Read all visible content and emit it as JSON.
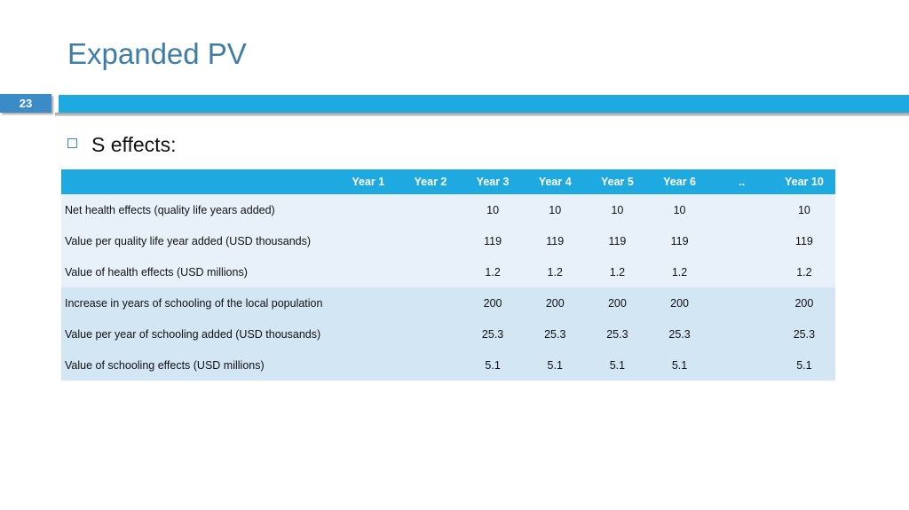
{
  "slide": {
    "title": "Expanded PV",
    "number": "23",
    "bullet": "S effects:"
  },
  "table": {
    "headers": [
      "",
      "Year 1",
      "Year 2",
      "Year 3",
      "Year 4",
      "Year 5",
      "Year 6",
      "..",
      "Year 10"
    ],
    "rows": [
      {
        "label": "Net health effects (quality life years added)",
        "cells": [
          "",
          "",
          "10",
          "10",
          "10",
          "10",
          "",
          "10"
        ]
      },
      {
        "label": "Value per quality life year added (USD thousands)",
        "cells": [
          "",
          "",
          "119",
          "119",
          "119",
          "119",
          "",
          "119"
        ]
      },
      {
        "label": "Value of health effects (USD millions)",
        "cells": [
          "",
          "",
          "1.2",
          "1.2",
          "1.2",
          "1.2",
          "",
          "1.2"
        ]
      },
      {
        "label": "Increase in years of schooling of the local population",
        "cells": [
          "",
          "",
          "200",
          "200",
          "200",
          "200",
          "",
          "200"
        ]
      },
      {
        "label": "Value per year of schooling added (USD thousands)",
        "cells": [
          "",
          "",
          "25.3",
          "25.3",
          "25.3",
          "25.3",
          "",
          "25.3"
        ]
      },
      {
        "label": "Value of schooling effects (USD millions)",
        "cells": [
          "",
          "",
          "5.1",
          "5.1",
          "5.1",
          "5.1",
          "",
          "5.1"
        ]
      }
    ]
  },
  "colors": {
    "title": "#3e7ea6",
    "accent_bar": "#1ea9e0",
    "badge": "#3a8bc8",
    "row_group_1": "#e8f1fa",
    "row_group_2": "#d3e6f4"
  }
}
